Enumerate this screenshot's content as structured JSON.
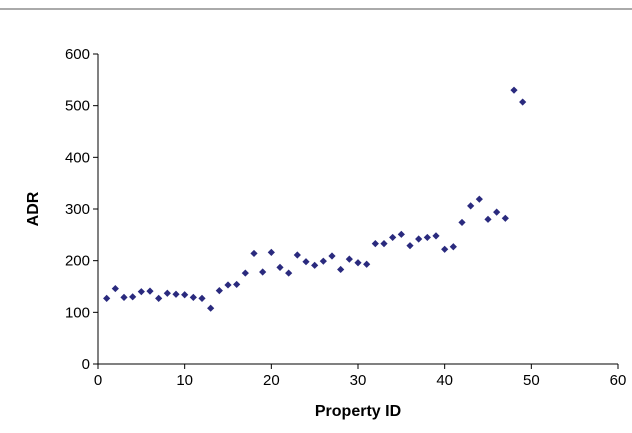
{
  "chart_data": {
    "type": "scatter",
    "title": "",
    "xlabel": "Property ID",
    "ylabel": "ADR",
    "xlim": [
      0,
      60
    ],
    "ylim": [
      0,
      600
    ],
    "xticks": [
      0,
      10,
      20,
      30,
      40,
      50,
      60
    ],
    "yticks": [
      0,
      100,
      200,
      300,
      400,
      500,
      600
    ],
    "grid": false,
    "legend": "none",
    "marker": "diamond",
    "marker_color": "#2a2a7e",
    "points": [
      {
        "x": 1,
        "y": 127
      },
      {
        "x": 2,
        "y": 146
      },
      {
        "x": 3,
        "y": 129
      },
      {
        "x": 4,
        "y": 130
      },
      {
        "x": 5,
        "y": 140
      },
      {
        "x": 6,
        "y": 141
      },
      {
        "x": 7,
        "y": 127
      },
      {
        "x": 8,
        "y": 137
      },
      {
        "x": 9,
        "y": 135
      },
      {
        "x": 10,
        "y": 134
      },
      {
        "x": 11,
        "y": 129
      },
      {
        "x": 12,
        "y": 127
      },
      {
        "x": 13,
        "y": 108
      },
      {
        "x": 14,
        "y": 142
      },
      {
        "x": 15,
        "y": 153
      },
      {
        "x": 16,
        "y": 154
      },
      {
        "x": 17,
        "y": 176
      },
      {
        "x": 18,
        "y": 214
      },
      {
        "x": 19,
        "y": 178
      },
      {
        "x": 20,
        "y": 216
      },
      {
        "x": 21,
        "y": 187
      },
      {
        "x": 22,
        "y": 176
      },
      {
        "x": 23,
        "y": 211
      },
      {
        "x": 24,
        "y": 198
      },
      {
        "x": 25,
        "y": 191
      },
      {
        "x": 26,
        "y": 199
      },
      {
        "x": 27,
        "y": 209
      },
      {
        "x": 28,
        "y": 183
      },
      {
        "x": 29,
        "y": 203
      },
      {
        "x": 30,
        "y": 196
      },
      {
        "x": 31,
        "y": 193
      },
      {
        "x": 32,
        "y": 233
      },
      {
        "x": 33,
        "y": 233
      },
      {
        "x": 34,
        "y": 245
      },
      {
        "x": 35,
        "y": 251
      },
      {
        "x": 36,
        "y": 229
      },
      {
        "x": 37,
        "y": 242
      },
      {
        "x": 38,
        "y": 245
      },
      {
        "x": 39,
        "y": 248
      },
      {
        "x": 40,
        "y": 222
      },
      {
        "x": 41,
        "y": 227
      },
      {
        "x": 42,
        "y": 274
      },
      {
        "x": 43,
        "y": 306
      },
      {
        "x": 44,
        "y": 319
      },
      {
        "x": 45,
        "y": 280
      },
      {
        "x": 46,
        "y": 294
      },
      {
        "x": 47,
        "y": 282
      },
      {
        "x": 48,
        "y": 530
      },
      {
        "x": 49,
        "y": 507
      }
    ]
  }
}
